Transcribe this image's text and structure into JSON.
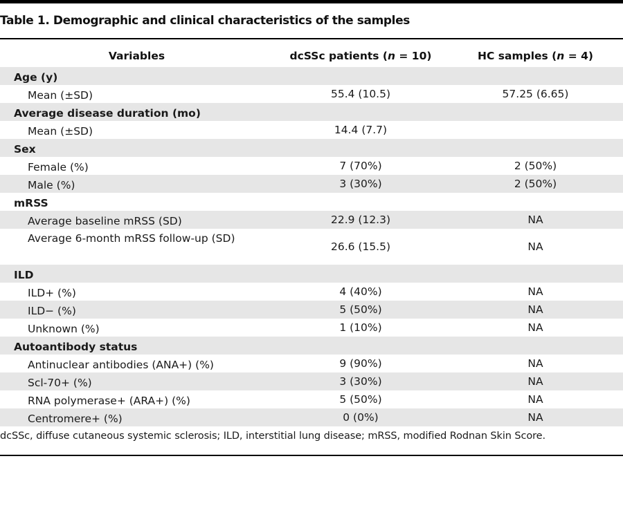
{
  "table_title": "Table 1. Demographic and clinical characteristics of the samples",
  "headers": {
    "variables": "Variables",
    "dcssc_prefix": "dcSSc patients (",
    "dcssc_n": "n",
    "dcssc_suffix": " = 10)",
    "hc_prefix": "HC samples (",
    "hc_n": "n",
    "hc_suffix": " = 4)"
  },
  "rows": [
    {
      "label": "Age (y)",
      "type": "section",
      "dcssc": "",
      "hc": ""
    },
    {
      "label": "Mean (±SD)",
      "type": "item",
      "dcssc": "55.4 (10.5)",
      "hc": "57.25 (6.65)"
    },
    {
      "label": "Average disease duration (mo)",
      "type": "section",
      "dcssc": "",
      "hc": ""
    },
    {
      "label": "Mean (±SD)",
      "type": "item",
      "dcssc": "14.4 (7.7)",
      "hc": ""
    },
    {
      "label": "Sex",
      "type": "section",
      "dcssc": "",
      "hc": ""
    },
    {
      "label": "Female (%)",
      "type": "item",
      "dcssc": "7 (70%)",
      "hc": "2 (50%)"
    },
    {
      "label": "Male (%)",
      "type": "item",
      "dcssc": "3 (30%)",
      "hc": "2 (50%)"
    },
    {
      "label": "mRSS",
      "type": "section",
      "dcssc": "",
      "hc": ""
    },
    {
      "label": "Average baseline mRSS (SD)",
      "type": "item",
      "dcssc": "22.9 (12.3)",
      "hc": "NA"
    },
    {
      "label": "Average 6-month mRSS follow-up (SD)",
      "type": "item-tall",
      "dcssc": "26.6 (15.5)",
      "hc": "NA"
    },
    {
      "label": "ILD",
      "type": "section",
      "dcssc": "",
      "hc": ""
    },
    {
      "label": "ILD+ (%)",
      "type": "item",
      "dcssc": "4 (40%)",
      "hc": "NA"
    },
    {
      "label": "ILD− (%)",
      "type": "item",
      "dcssc": "5 (50%)",
      "hc": "NA"
    },
    {
      "label": "Unknown (%)",
      "type": "item",
      "dcssc": "1 (10%)",
      "hc": "NA"
    },
    {
      "label": "Autoantibody status",
      "type": "section",
      "dcssc": "",
      "hc": ""
    },
    {
      "label": "Antinuclear antibodies (ANA+) (%)",
      "type": "item",
      "dcssc": "9 (90%)",
      "hc": "NA"
    },
    {
      "label": "Scl-70+ (%)",
      "type": "item",
      "dcssc": "3 (30%)",
      "hc": "NA"
    },
    {
      "label": "RNA polymerase+ (ARA+) (%)",
      "type": "item",
      "dcssc": "5 (50%)",
      "hc": "NA"
    },
    {
      "label": "Centromere+ (%)",
      "type": "item",
      "dcssc": "0 (0%)",
      "hc": "NA"
    }
  ],
  "footnote": "dcSSc, diffuse cutaneous systemic sclerosis; ILD, interstitial lung disease; mRSS, modified Rodnan Skin Score.",
  "colors": {
    "shade": "#e6e6e6",
    "rule": "#000000"
  }
}
